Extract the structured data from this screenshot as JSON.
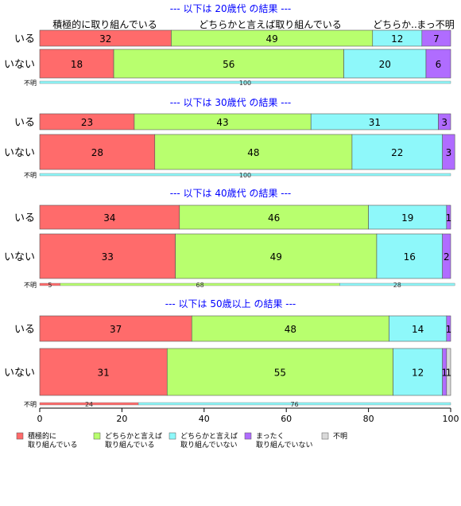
{
  "chart_data": {
    "type": "bar",
    "orientation": "horizontal",
    "stacked": "percent",
    "xlim": [
      0,
      100
    ],
    "xticks": [
      0,
      20,
      40,
      60,
      80,
      100
    ],
    "grid": false,
    "legend_position": "bottom",
    "categories": [
      {
        "short": "積極的に取り組んでいる",
        "legend": [
          "積極的に",
          "取り組んでいる"
        ],
        "color": "#ff6b6b"
      },
      {
        "short": "どちらかと言えば取り組んでいる",
        "legend": [
          "どちらかと言えば",
          "取り組んでいる"
        ],
        "color": "#b8ff6e"
      },
      {
        "short": "どちらか..",
        "legend": [
          "どちらかと言えば",
          "取り組んでいない"
        ],
        "color": "#8ef8fa"
      },
      {
        "short": "まっ不明",
        "legend": [
          "まったく",
          "取り組んでいない"
        ],
        "color": "#b06cff"
      },
      {
        "short": "",
        "legend": [
          "不明"
        ],
        "color": "#d9d9d9"
      }
    ],
    "panels": [
      {
        "title": "--- 以下は 20歳代 の結果 ---",
        "rows": [
          {
            "label": "いる",
            "values": [
              32,
              49,
              12,
              7,
              0
            ],
            "shown": [
              "32",
              "49",
              "12",
              "7",
              ""
            ]
          },
          {
            "label": "いない",
            "values": [
              18,
              56,
              20,
              6,
              0
            ],
            "shown": [
              "18",
              "56",
              "20",
              "6",
              ""
            ]
          }
        ],
        "unknown": {
          "label": "不明",
          "values": [
            0,
            0,
            100,
            0,
            0
          ],
          "shown": [
            "",
            "",
            "100",
            "",
            ""
          ]
        }
      },
      {
        "title": "--- 以下は 30歳代 の結果 ---",
        "rows": [
          {
            "label": "いる",
            "values": [
              23,
              43,
              31,
              3,
              0
            ],
            "shown": [
              "23",
              "43",
              "31",
              "3",
              ""
            ]
          },
          {
            "label": "いない",
            "values": [
              28,
              48,
              22,
              3,
              0
            ],
            "shown": [
              "28",
              "48",
              "22",
              "3",
              ""
            ]
          }
        ],
        "unknown": {
          "label": "不明",
          "values": [
            0,
            0,
            100,
            0,
            0
          ],
          "shown": [
            "",
            "",
            "100",
            "",
            ""
          ]
        }
      },
      {
        "title": "--- 以下は 40歳代 の結果 ---",
        "rows": [
          {
            "label": "いる",
            "values": [
              34,
              46,
              19,
              1,
              0
            ],
            "shown": [
              "34",
              "46",
              "19",
              "1",
              ""
            ]
          },
          {
            "label": "いない",
            "values": [
              33,
              49,
              16,
              2,
              0
            ],
            "shown": [
              "33",
              "49",
              "16",
              "2",
              ""
            ]
          }
        ],
        "unknown": {
          "label": "不明",
          "values": [
            5,
            68,
            28,
            0,
            0
          ],
          "shown": [
            "5",
            "68",
            "28",
            "",
            ""
          ]
        }
      },
      {
        "title": "--- 以下は 50歳以上 の結果 ---",
        "rows": [
          {
            "label": "いる",
            "values": [
              37,
              48,
              14,
              1,
              0
            ],
            "shown": [
              "37",
              "48",
              "14",
              "1",
              ""
            ]
          },
          {
            "label": "いない",
            "values": [
              31,
              55,
              12,
              1,
              1
            ],
            "shown": [
              "31",
              "55",
              "12",
              "1",
              "1"
            ]
          }
        ],
        "unknown": {
          "label": "不明",
          "values": [
            24,
            0,
            76,
            0,
            0
          ],
          "shown": [
            "24",
            "",
            "76",
            "",
            ""
          ]
        }
      }
    ]
  }
}
